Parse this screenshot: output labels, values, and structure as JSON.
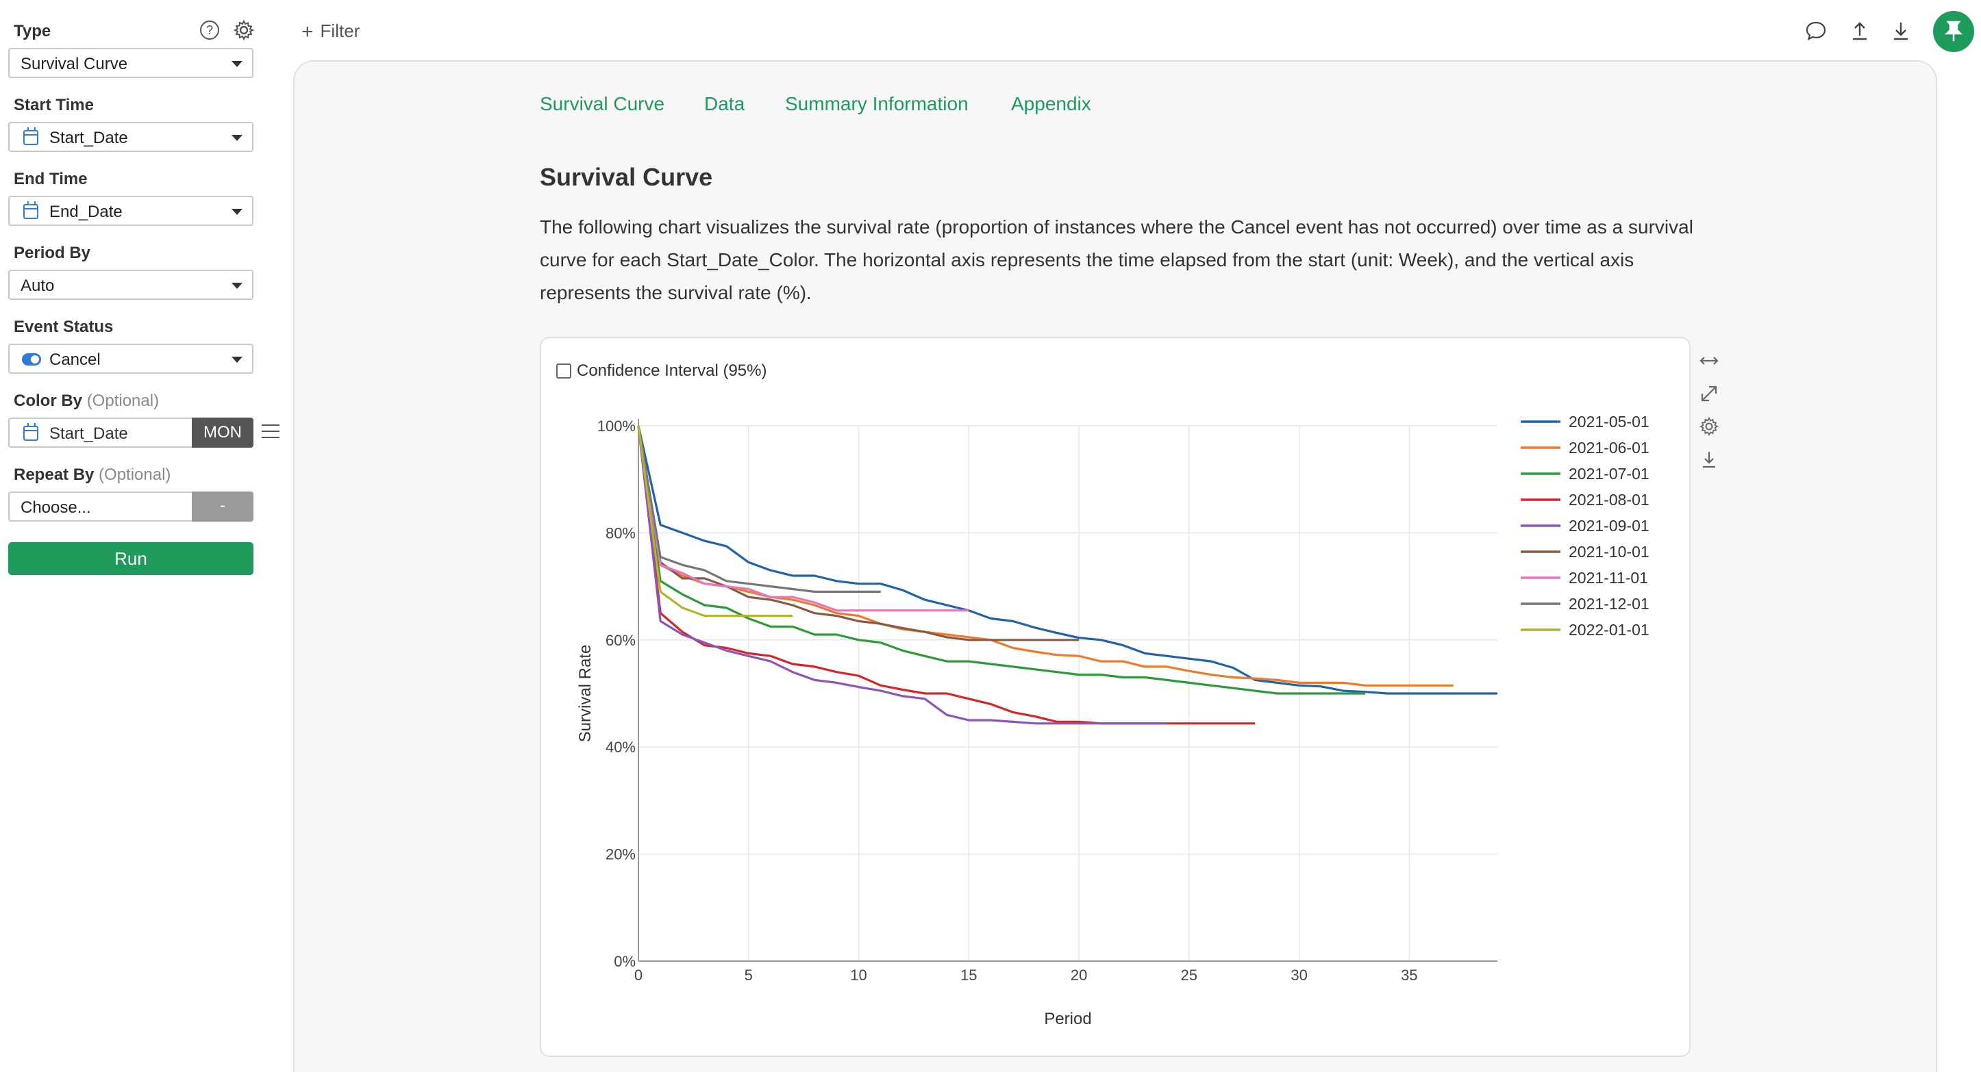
{
  "sidebar": {
    "type": {
      "label": "Type",
      "value": "Survival Curve"
    },
    "start_time": {
      "label": "Start Time",
      "value": "Start_Date"
    },
    "end_time": {
      "label": "End Time",
      "value": "End_Date"
    },
    "period_by": {
      "label": "Period By",
      "value": "Auto"
    },
    "event_status": {
      "label": "Event Status",
      "value": "Cancel"
    },
    "color_by": {
      "label": "Color By",
      "optional": "(Optional)",
      "value": "Start_Date",
      "unit_button": "MON"
    },
    "repeat_by": {
      "label": "Repeat By",
      "optional": "(Optional)",
      "placeholder": "Choose...",
      "button": "-"
    },
    "run_label": "Run"
  },
  "topbar": {
    "filter_label": "Filter"
  },
  "tabs": [
    "Survival Curve",
    "Data",
    "Summary Information",
    "Appendix"
  ],
  "section": {
    "title": "Survival Curve",
    "description": "The following chart visualizes the survival rate (proportion of instances where the Cancel event has not occurred) over time as a survival curve for each Start_Date_Color. The horizontal axis represents the time elapsed from the start (unit: Week), and the vertical axis represents the survival rate (%)."
  },
  "chart_controls": {
    "confidence_label": "Confidence Interval (95%)"
  },
  "chart_data": {
    "type": "line",
    "title": "",
    "xlabel": "Period",
    "ylabel": "Survival Rate",
    "xlim": [
      0,
      39
    ],
    "ylim": [
      0,
      100
    ],
    "x_ticks": [
      0,
      5,
      10,
      15,
      20,
      25,
      30,
      35
    ],
    "y_ticks": [
      0,
      20,
      40,
      60,
      80,
      100
    ],
    "y_tick_labels": [
      "0%",
      "20%",
      "40%",
      "60%",
      "80%",
      "100%"
    ],
    "grid": true,
    "legend_position": "right",
    "series": [
      {
        "name": "2021-05-01",
        "color": "#1f64a8",
        "points": [
          [
            0,
            100
          ],
          [
            1,
            81.5
          ],
          [
            2,
            80
          ],
          [
            3,
            78.5
          ],
          [
            4,
            77.5
          ],
          [
            5,
            74.5
          ],
          [
            6,
            73
          ],
          [
            7,
            72
          ],
          [
            8,
            72
          ],
          [
            9,
            71
          ],
          [
            10,
            70.5
          ],
          [
            11,
            70.5
          ],
          [
            12,
            69.3
          ],
          [
            13,
            67.5
          ],
          [
            14,
            66.5
          ],
          [
            15,
            65.5
          ],
          [
            16,
            64
          ],
          [
            17,
            63.5
          ],
          [
            18,
            62.3
          ],
          [
            19,
            61.3
          ],
          [
            20,
            60.4
          ],
          [
            21,
            60
          ],
          [
            22,
            59
          ],
          [
            23,
            57.5
          ],
          [
            24,
            57
          ],
          [
            25,
            56.5
          ],
          [
            26,
            56
          ],
          [
            27,
            54.8
          ],
          [
            28,
            52.5
          ],
          [
            29,
            52
          ],
          [
            30,
            51.5
          ],
          [
            31,
            51.3
          ],
          [
            32,
            50.5
          ],
          [
            33,
            50.3
          ],
          [
            34,
            50
          ],
          [
            35,
            50
          ],
          [
            36,
            50
          ],
          [
            37,
            50
          ],
          [
            38,
            50
          ],
          [
            39,
            50
          ]
        ]
      },
      {
        "name": "2021-06-01",
        "color": "#f07a2a",
        "points": [
          [
            0,
            100
          ],
          [
            1,
            74
          ],
          [
            2,
            72
          ],
          [
            3,
            70.5
          ],
          [
            4,
            70
          ],
          [
            5,
            69
          ],
          [
            6,
            68
          ],
          [
            7,
            67.5
          ],
          [
            8,
            66.5
          ],
          [
            9,
            65
          ],
          [
            10,
            64.5
          ],
          [
            11,
            63
          ],
          [
            12,
            62
          ],
          [
            13,
            61.5
          ],
          [
            14,
            61
          ],
          [
            15,
            60.5
          ],
          [
            16,
            60
          ],
          [
            17,
            58.5
          ],
          [
            18,
            57.8
          ],
          [
            19,
            57.2
          ],
          [
            20,
            57
          ],
          [
            21,
            56
          ],
          [
            22,
            56
          ],
          [
            23,
            55
          ],
          [
            24,
            55
          ],
          [
            25,
            54.2
          ],
          [
            26,
            53.5
          ],
          [
            27,
            53
          ],
          [
            28,
            52.8
          ],
          [
            29,
            52.5
          ],
          [
            30,
            52
          ],
          [
            31,
            52
          ],
          [
            32,
            52
          ],
          [
            33,
            51.5
          ],
          [
            34,
            51.5
          ],
          [
            35,
            51.5
          ],
          [
            36,
            51.5
          ],
          [
            37,
            51.5
          ]
        ]
      },
      {
        "name": "2021-07-01",
        "color": "#2e9a3a",
        "points": [
          [
            0,
            100
          ],
          [
            1,
            71
          ],
          [
            2,
            68.5
          ],
          [
            3,
            66.5
          ],
          [
            4,
            66
          ],
          [
            5,
            64
          ],
          [
            6,
            62.5
          ],
          [
            7,
            62.5
          ],
          [
            8,
            61
          ],
          [
            9,
            61
          ],
          [
            10,
            60
          ],
          [
            11,
            59.5
          ],
          [
            12,
            58
          ],
          [
            13,
            57
          ],
          [
            14,
            56
          ],
          [
            15,
            56
          ],
          [
            16,
            55.5
          ],
          [
            17,
            55
          ],
          [
            18,
            54.5
          ],
          [
            19,
            54
          ],
          [
            20,
            53.5
          ],
          [
            21,
            53.5
          ],
          [
            22,
            53
          ],
          [
            23,
            53
          ],
          [
            24,
            52.5
          ],
          [
            25,
            52
          ],
          [
            26,
            51.5
          ],
          [
            27,
            51
          ],
          [
            28,
            50.5
          ],
          [
            29,
            50
          ],
          [
            30,
            50
          ],
          [
            31,
            50
          ],
          [
            32,
            50
          ],
          [
            33,
            50
          ]
        ]
      },
      {
        "name": "2021-08-01",
        "color": "#d62728",
        "points": [
          [
            0,
            100
          ],
          [
            1,
            65
          ],
          [
            2,
            61.5
          ],
          [
            3,
            59
          ],
          [
            4,
            58.5
          ],
          [
            5,
            57.5
          ],
          [
            6,
            57
          ],
          [
            7,
            55.5
          ],
          [
            8,
            55
          ],
          [
            9,
            54
          ],
          [
            10,
            53.3
          ],
          [
            11,
            51.5
          ],
          [
            12,
            50.7
          ],
          [
            13,
            50
          ],
          [
            14,
            50
          ],
          [
            15,
            49
          ],
          [
            16,
            48
          ],
          [
            17,
            46.5
          ],
          [
            18,
            45.7
          ],
          [
            19,
            44.7
          ],
          [
            20,
            44.7
          ],
          [
            21,
            44.4
          ],
          [
            22,
            44.4
          ],
          [
            23,
            44.4
          ],
          [
            24,
            44.4
          ],
          [
            25,
            44.4
          ],
          [
            26,
            44.4
          ],
          [
            27,
            44.4
          ],
          [
            28,
            44.4
          ]
        ]
      },
      {
        "name": "2021-09-01",
        "color": "#8c55b8",
        "points": [
          [
            0,
            100
          ],
          [
            1,
            63.5
          ],
          [
            2,
            61
          ],
          [
            3,
            59.5
          ],
          [
            4,
            58
          ],
          [
            5,
            57
          ],
          [
            6,
            56
          ],
          [
            7,
            54
          ],
          [
            8,
            52.5
          ],
          [
            9,
            52
          ],
          [
            10,
            51.2
          ],
          [
            11,
            50.5
          ],
          [
            12,
            49.5
          ],
          [
            13,
            49
          ],
          [
            14,
            46
          ],
          [
            15,
            45
          ],
          [
            16,
            45
          ],
          [
            17,
            44.7
          ],
          [
            18,
            44.4
          ],
          [
            19,
            44.4
          ],
          [
            20,
            44.4
          ],
          [
            21,
            44.4
          ],
          [
            22,
            44.4
          ],
          [
            23,
            44.4
          ],
          [
            24,
            44.4
          ]
        ]
      },
      {
        "name": "2021-10-01",
        "color": "#8b5a44",
        "points": [
          [
            0,
            100
          ],
          [
            1,
            74.5
          ],
          [
            2,
            71.5
          ],
          [
            3,
            71.5
          ],
          [
            4,
            70
          ],
          [
            5,
            68
          ],
          [
            6,
            67.5
          ],
          [
            7,
            66.5
          ],
          [
            8,
            65
          ],
          [
            9,
            64.5
          ],
          [
            10,
            63.5
          ],
          [
            11,
            63
          ],
          [
            12,
            62.2
          ],
          [
            13,
            61.5
          ],
          [
            14,
            60.5
          ],
          [
            15,
            60
          ],
          [
            16,
            60
          ],
          [
            17,
            60
          ],
          [
            18,
            60
          ],
          [
            19,
            60
          ],
          [
            20,
            60
          ]
        ]
      },
      {
        "name": "2021-11-01",
        "color": "#e377c2",
        "points": [
          [
            0,
            100
          ],
          [
            1,
            74
          ],
          [
            2,
            72.5
          ],
          [
            3,
            70.5
          ],
          [
            4,
            70
          ],
          [
            5,
            69.5
          ],
          [
            6,
            68
          ],
          [
            7,
            68
          ],
          [
            8,
            67
          ],
          [
            9,
            65.5
          ],
          [
            10,
            65.5
          ],
          [
            11,
            65.5
          ],
          [
            12,
            65.5
          ],
          [
            13,
            65.5
          ],
          [
            14,
            65.5
          ],
          [
            15,
            65.5
          ]
        ]
      },
      {
        "name": "2021-12-01",
        "color": "#777777",
        "points": [
          [
            0,
            100
          ],
          [
            1,
            75.5
          ],
          [
            2,
            74
          ],
          [
            3,
            73
          ],
          [
            4,
            71
          ],
          [
            5,
            70.5
          ],
          [
            6,
            70
          ],
          [
            7,
            69.5
          ],
          [
            8,
            69
          ],
          [
            9,
            69
          ],
          [
            10,
            69
          ],
          [
            11,
            69
          ]
        ]
      },
      {
        "name": "2022-01-01",
        "color": "#b5b330",
        "points": [
          [
            0,
            100
          ],
          [
            1,
            69
          ],
          [
            2,
            66
          ],
          [
            3,
            64.5
          ],
          [
            4,
            64.5
          ],
          [
            5,
            64.5
          ],
          [
            6,
            64.5
          ],
          [
            7,
            64.5
          ]
        ]
      }
    ]
  }
}
